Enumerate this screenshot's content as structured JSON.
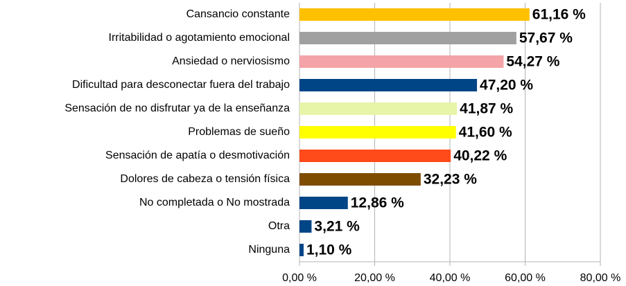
{
  "chart_data": {
    "type": "bar",
    "orientation": "horizontal",
    "categories": [
      "Cansancio constante",
      "Irritabilidad o agotamiento emocional",
      "Ansiedad o nerviosismo",
      "Dificultad para desconectar fuera del trabajo",
      "Sensación de no disfrutar ya de la enseñanza",
      "Problemas de sueño",
      "Sensación de apatía o desmotivación",
      "Dolores de cabeza o tensión física",
      "No completada o No mostrada",
      "Otra",
      "Ninguna"
    ],
    "values": [
      61.16,
      57.67,
      54.27,
      47.2,
      41.87,
      41.6,
      40.22,
      32.23,
      12.86,
      3.21,
      1.1
    ],
    "value_labels": [
      "61,16 %",
      "57,67 %",
      "54,27 %",
      "47,20 %",
      "41,87 %",
      "41,60 %",
      "40,22 %",
      "32,23 %",
      "12,86 %",
      "3,21 %",
      "1,10 %"
    ],
    "colors": [
      "#ffc000",
      "#a0a0a0",
      "#f4a3a8",
      "#004586",
      "#e6f5a8",
      "#ffff00",
      "#ff4a1a",
      "#7e4c00",
      "#004586",
      "#004586",
      "#004586"
    ],
    "xlim": [
      0,
      80
    ],
    "xticks": [
      {
        "value": 0,
        "label": "0,00 %"
      },
      {
        "value": 20,
        "label": "20,00 %"
      },
      {
        "value": 40,
        "label": "40,00 %"
      },
      {
        "value": 60,
        "label": "60,00 %"
      },
      {
        "value": 80,
        "label": "80,00 %"
      }
    ],
    "grid": true
  }
}
